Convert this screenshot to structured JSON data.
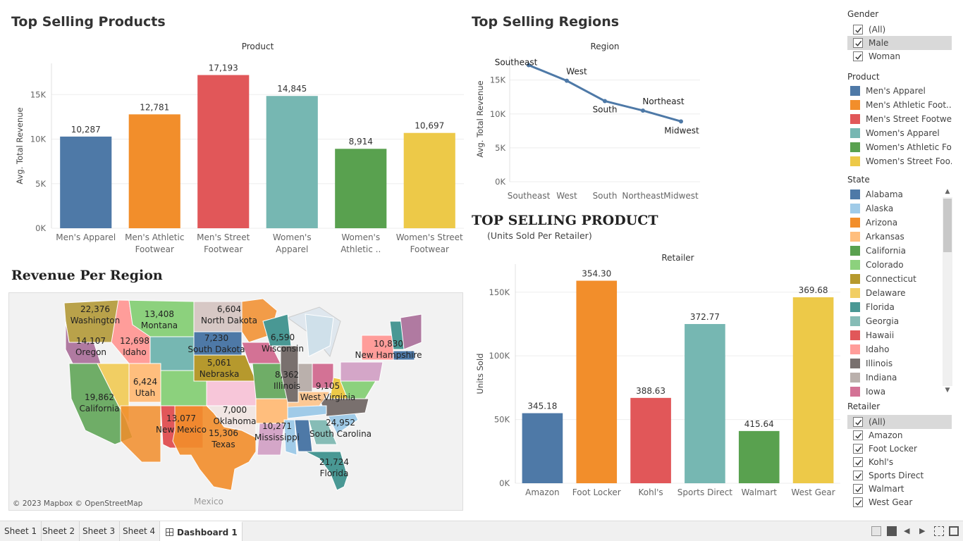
{
  "titles": {
    "top_products": "Top Selling Products",
    "top_regions": "Top Selling Regions",
    "revenue_region": "Revenue Per Region",
    "top_product": "TOP SELLING PRODUCT",
    "top_product_sub": "(Units Sold Per Retailer)"
  },
  "chart_data": [
    {
      "type": "bar",
      "header": "Product",
      "ylabel": "Avg. Total Revenue",
      "categories": [
        [
          "Men's Apparel"
        ],
        [
          "Men's Athletic",
          "Footwear"
        ],
        [
          "Men's Street",
          "Footwear"
        ],
        [
          "Women's",
          "Apparel"
        ],
        [
          "Women's",
          "Athletic .."
        ],
        [
          "Women's Street",
          "Footwear"
        ]
      ],
      "values": [
        10287,
        12781,
        17193,
        14845,
        8914,
        10697
      ],
      "value_labels": [
        "10,287",
        "12,781",
        "17,193",
        "14,845",
        "8,914",
        "10,697"
      ],
      "colors": [
        "#4e79a7",
        "#f28e2b",
        "#e15759",
        "#76b7b2",
        "#59a14f",
        "#edc948"
      ],
      "yticks": [
        0,
        5000,
        10000,
        15000
      ],
      "ytick_labels": [
        "0K",
        "5K",
        "10K",
        "15K"
      ],
      "ylim": [
        0,
        18500
      ]
    },
    {
      "type": "line",
      "header": "Region",
      "ylabel": "Avg. Total Revenue",
      "categories": [
        "Southeast",
        "West",
        "South",
        "Northeast",
        "Midwest"
      ],
      "values": [
        17200,
        14900,
        11900,
        10500,
        8900
      ],
      "color": "#4e79a7",
      "yticks": [
        0,
        5000,
        10000,
        15000
      ],
      "ytick_labels": [
        "0K",
        "5K",
        "10K",
        "15K"
      ],
      "ylim": [
        0,
        18500
      ]
    },
    {
      "type": "bar",
      "header": "Retailer",
      "ylabel": "Units Sold",
      "categories": [
        "Amazon",
        "Foot Locker",
        "Kohl's",
        "Sports Direct",
        "Walmart",
        "West Gear"
      ],
      "values": [
        55000,
        159000,
        67000,
        125000,
        41000,
        146000
      ],
      "value_labels": [
        "345.18",
        "354.30",
        "388.63",
        "372.77",
        "415.64",
        "369.68"
      ],
      "colors": [
        "#4e79a7",
        "#f28e2b",
        "#e15759",
        "#76b7b2",
        "#59a14f",
        "#edc948"
      ],
      "yticks": [
        0,
        50000,
        100000,
        150000
      ],
      "ytick_labels": [
        "0K",
        "50K",
        "100K",
        "150K"
      ],
      "ylim": [
        0,
        172000
      ]
    }
  ],
  "map": {
    "labels": [
      {
        "value": "22,376",
        "name": "Washington"
      },
      {
        "value": "13,408",
        "name": "Montana"
      },
      {
        "value": "6,604",
        "name": "North Dakota"
      },
      {
        "value": "14,107",
        "name": "Oregon"
      },
      {
        "value": "12,698",
        "name": "Idaho"
      },
      {
        "value": "7,230",
        "name": "South Dakota"
      },
      {
        "value": "6,590",
        "name": "Wisconsin"
      },
      {
        "value": "10,830",
        "name": "New Hampshire"
      },
      {
        "value": "5,061",
        "name": "Nebraska"
      },
      {
        "value": "8,362",
        "name": "Illinois"
      },
      {
        "value": "6,424",
        "name": "Utah"
      },
      {
        "value": "9,105",
        "name": "West Virginia"
      },
      {
        "value": "19,862",
        "name": "California"
      },
      {
        "value": "7,000",
        "name": "Oklahoma"
      },
      {
        "value": "13,077",
        "name": "New Mexico"
      },
      {
        "value": "24,952",
        "name": "South Carolina"
      },
      {
        "value": "10,271",
        "name": "Mississippi"
      },
      {
        "value": "15,306",
        "name": "Texas"
      },
      {
        "value": "21,724",
        "name": "Florida"
      }
    ],
    "country_label": "Mexico",
    "credit": "© 2023 Mapbox © OpenStreetMap"
  },
  "filters": {
    "gender": {
      "title": "Gender",
      "items": [
        {
          "label": "(All)",
          "checked": true
        },
        {
          "label": "Male",
          "checked": true
        },
        {
          "label": "Woman",
          "checked": true
        }
      ]
    },
    "product": {
      "title": "Product",
      "items": [
        {
          "label": "Men's Apparel",
          "color": "#4e79a7"
        },
        {
          "label": "Men's Athletic Foot..",
          "color": "#f28e2b"
        },
        {
          "label": "Men's Street Footwe..",
          "color": "#e15759"
        },
        {
          "label": "Women's Apparel",
          "color": "#76b7b2"
        },
        {
          "label": "Women's Athletic Fo..",
          "color": "#59a14f"
        },
        {
          "label": "Women's Street Foo..",
          "color": "#edc948"
        }
      ]
    },
    "state": {
      "title": "State",
      "items": [
        {
          "label": "Alabama",
          "color": "#4e79a7"
        },
        {
          "label": "Alaska",
          "color": "#a0cbe8"
        },
        {
          "label": "Arizona",
          "color": "#f28e2b"
        },
        {
          "label": "Arkansas",
          "color": "#ffbe7d"
        },
        {
          "label": "California",
          "color": "#59a14f"
        },
        {
          "label": "Colorado",
          "color": "#8cd17d"
        },
        {
          "label": "Connecticut",
          "color": "#b6992d"
        },
        {
          "label": "Delaware",
          "color": "#f1ce63"
        },
        {
          "label": "Florida",
          "color": "#499894"
        },
        {
          "label": "Georgia",
          "color": "#86bcb6"
        },
        {
          "label": "Hawaii",
          "color": "#e15759"
        },
        {
          "label": "Idaho",
          "color": "#ff9d9a"
        },
        {
          "label": "Illinois",
          "color": "#79706e"
        },
        {
          "label": "Indiana",
          "color": "#bab0ac"
        },
        {
          "label": "Iowa",
          "color": "#d37295"
        }
      ]
    },
    "retailer": {
      "title": "Retailer",
      "items": [
        {
          "label": "(All)",
          "checked": true
        },
        {
          "label": "Amazon",
          "checked": true
        },
        {
          "label": "Foot Locker",
          "checked": true
        },
        {
          "label": "Kohl's",
          "checked": true
        },
        {
          "label": "Sports Direct",
          "checked": true
        },
        {
          "label": "Walmart",
          "checked": true
        },
        {
          "label": "West Gear",
          "checked": true
        }
      ]
    }
  },
  "tabs": [
    "Sheet 1",
    "Sheet 2",
    "Sheet 3",
    "Sheet 4",
    "Dashboard 1"
  ],
  "active_tab": "Dashboard 1"
}
